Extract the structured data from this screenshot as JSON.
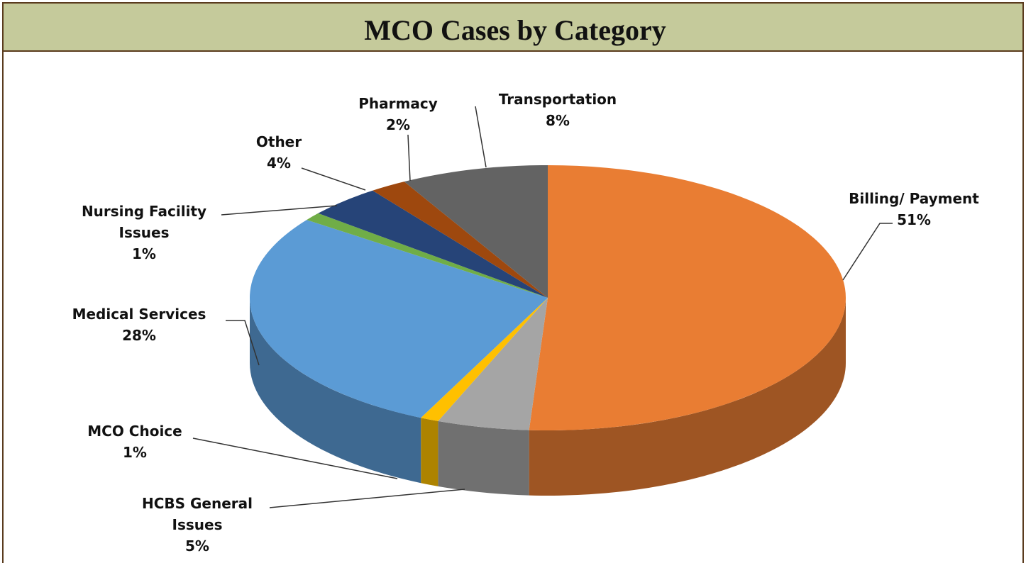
{
  "chart_data": {
    "type": "pie",
    "title": "MCO Cases by  Category",
    "categories": [
      "Billing/ Payment",
      "HCBS General Issues",
      "MCO Choice",
      "Medical Services",
      "Nursing Facility Issues",
      "Other",
      "Pharmacy",
      "Transportation"
    ],
    "values": [
      51,
      5,
      1,
      28,
      1,
      4,
      2,
      8
    ],
    "value_labels": [
      "51%",
      "5%",
      "1%",
      "28%",
      "1%",
      "4%",
      "2%",
      "8%"
    ],
    "colors": [
      "#e97d33",
      "#a5a5a5",
      "#ffc000",
      "#5b9bd5",
      "#70ad47",
      "#264478",
      "#9e480e",
      "#636363"
    ]
  }
}
